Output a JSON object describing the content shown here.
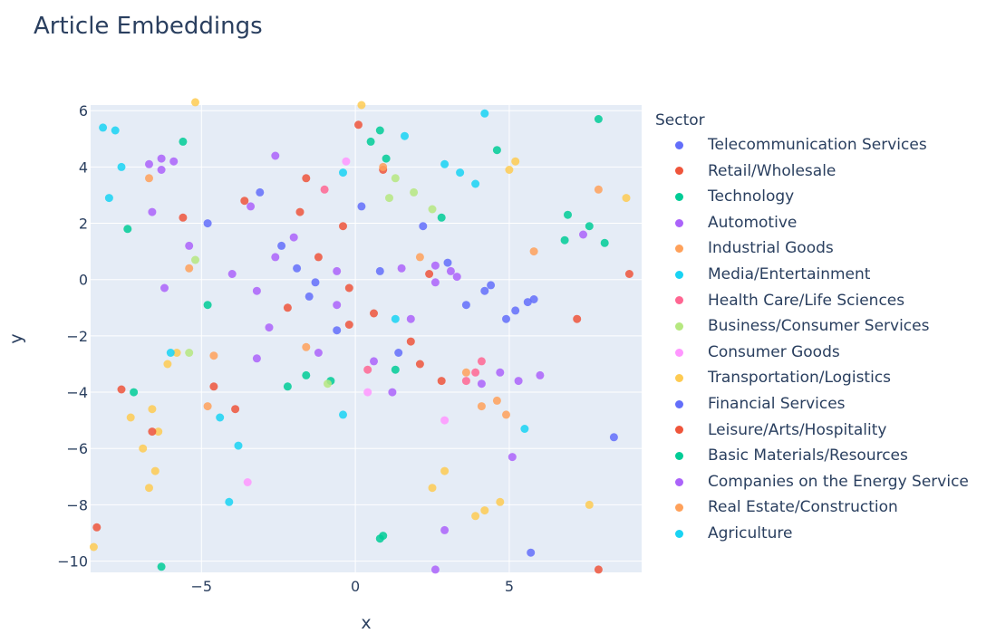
{
  "chart_data": {
    "type": "scatter",
    "title": "Article Embeddings",
    "xlabel": "x",
    "ylabel": "y",
    "xlim": [
      -8.6,
      9.3
    ],
    "ylim": [
      -10.4,
      6.2
    ],
    "xticks": [
      -5,
      0,
      5
    ],
    "yticks": [
      -10,
      -8,
      -6,
      -4,
      -2,
      0,
      2,
      4,
      6
    ],
    "grid": true,
    "plot_background": "#e5ecf6",
    "legend_title": "Sector",
    "legend_position": "right",
    "series": [
      {
        "name": "Telecommunication Services",
        "color": "#636efa",
        "points": [
          [
            -2.4,
            1.2
          ],
          [
            -1.5,
            -0.6
          ],
          [
            0.8,
            0.3
          ],
          [
            3.6,
            -0.9
          ],
          [
            5.2,
            -1.1
          ],
          [
            -4.8,
            2.0
          ],
          [
            2.2,
            1.9
          ],
          [
            -0.6,
            -1.8
          ],
          [
            4.4,
            -0.2
          ],
          [
            -3.1,
            3.1
          ],
          [
            1.4,
            -2.6
          ],
          [
            5.8,
            -0.7
          ],
          [
            -1.9,
            0.4
          ],
          [
            0.2,
            2.6
          ],
          [
            3.0,
            0.6
          ]
        ]
      },
      {
        "name": "Retail/Wholesale",
        "color": "#ef553b",
        "points": [
          [
            -1.2,
            0.8
          ],
          [
            -0.4,
            1.9
          ],
          [
            0.6,
            -1.2
          ],
          [
            1.8,
            -2.2
          ],
          [
            -2.2,
            -1.0
          ],
          [
            2.4,
            0.2
          ],
          [
            -1.6,
            3.6
          ],
          [
            -3.6,
            2.8
          ],
          [
            0.9,
            3.9
          ],
          [
            -5.6,
            2.2
          ],
          [
            -8.4,
            -8.8
          ],
          [
            7.2,
            -1.4
          ],
          [
            -0.2,
            -0.3
          ],
          [
            2.8,
            -3.6
          ],
          [
            -4.6,
            -3.8
          ]
        ]
      },
      {
        "name": "Technology",
        "color": "#00cc96",
        "points": [
          [
            0.5,
            4.9
          ],
          [
            0.8,
            5.3
          ],
          [
            7.6,
            1.9
          ],
          [
            6.9,
            2.3
          ],
          [
            8.1,
            1.3
          ],
          [
            -0.8,
            -3.6
          ],
          [
            -1.6,
            -3.4
          ],
          [
            2.8,
            2.2
          ],
          [
            -7.2,
            -4.0
          ],
          [
            0.8,
            -9.2
          ],
          [
            -6.3,
            -10.2
          ],
          [
            6.8,
            1.4
          ],
          [
            1.0,
            4.3
          ],
          [
            -2.2,
            -3.8
          ]
        ]
      },
      {
        "name": "Automotive",
        "color": "#ab63fa",
        "points": [
          [
            -6.3,
            4.3
          ],
          [
            -2.6,
            0.8
          ],
          [
            -3.2,
            -0.4
          ],
          [
            -2.0,
            1.5
          ],
          [
            4.1,
            -3.7
          ],
          [
            4.7,
            -3.3
          ],
          [
            5.3,
            -3.6
          ],
          [
            6.0,
            -3.4
          ],
          [
            2.6,
            -0.1
          ],
          [
            1.8,
            -1.4
          ],
          [
            -0.6,
            -0.9
          ],
          [
            -3.4,
            2.6
          ],
          [
            -2.8,
            -1.7
          ],
          [
            0.6,
            -2.9
          ],
          [
            3.1,
            0.3
          ],
          [
            -5.4,
            1.2
          ],
          [
            -1.2,
            -2.6
          ],
          [
            -4.0,
            0.2
          ],
          [
            1.2,
            -4.0
          ],
          [
            -2.6,
            4.4
          ]
        ]
      },
      {
        "name": "Industrial Goods",
        "color": "#ffa15a",
        "points": [
          [
            -5.4,
            0.4
          ],
          [
            3.6,
            -3.3
          ],
          [
            4.1,
            -4.5
          ],
          [
            7.9,
            3.2
          ],
          [
            -6.7,
            3.6
          ],
          [
            5.8,
            1.0
          ],
          [
            -4.8,
            -4.5
          ],
          [
            2.1,
            0.8
          ]
        ]
      },
      {
        "name": "Media/Entertainment",
        "color": "#19d3f3",
        "points": [
          [
            -8.2,
            5.4
          ],
          [
            -7.8,
            5.3
          ],
          [
            -7.6,
            4.0
          ],
          [
            2.9,
            4.1
          ],
          [
            3.4,
            3.8
          ],
          [
            -0.4,
            3.8
          ],
          [
            -8.0,
            2.9
          ],
          [
            1.6,
            5.1
          ],
          [
            -4.1,
            -7.9
          ],
          [
            -3.8,
            -5.9
          ]
        ]
      },
      {
        "name": "Health Care/Life Sciences",
        "color": "#ff6692",
        "points": [
          [
            3.9,
            -3.3
          ],
          [
            4.1,
            -2.9
          ],
          [
            3.6,
            -3.6
          ],
          [
            -1.0,
            3.2
          ],
          [
            0.4,
            -3.2
          ]
        ]
      },
      {
        "name": "Business/Consumer Services",
        "color": "#b6e880",
        "points": [
          [
            1.3,
            3.6
          ],
          [
            1.9,
            3.1
          ],
          [
            2.5,
            2.5
          ],
          [
            1.1,
            2.9
          ],
          [
            -5.2,
            0.7
          ],
          [
            -5.4,
            -2.6
          ],
          [
            -0.9,
            -3.7
          ]
        ]
      },
      {
        "name": "Consumer Goods",
        "color": "#ff97ff",
        "points": [
          [
            -0.3,
            4.2
          ],
          [
            0.4,
            -4.0
          ],
          [
            2.9,
            -5.0
          ],
          [
            -3.5,
            -7.2
          ]
        ]
      },
      {
        "name": "Transportation/Logistics",
        "color": "#fecb52",
        "points": [
          [
            -6.6,
            -4.6
          ],
          [
            -6.4,
            -5.4
          ],
          [
            -6.9,
            -6.0
          ],
          [
            -6.5,
            -6.8
          ],
          [
            -6.7,
            -7.4
          ],
          [
            -7.3,
            -4.9
          ],
          [
            -5.8,
            -2.6
          ],
          [
            -6.1,
            -3.0
          ],
          [
            5.2,
            4.2
          ],
          [
            5.0,
            3.9
          ],
          [
            4.2,
            -8.2
          ],
          [
            4.7,
            -7.9
          ],
          [
            3.9,
            -8.4
          ],
          [
            7.6,
            -8.0
          ],
          [
            2.9,
            -6.8
          ],
          [
            2.5,
            -7.4
          ],
          [
            -5.2,
            6.3
          ],
          [
            -8.5,
            -9.5
          ],
          [
            8.8,
            2.9
          ],
          [
            0.2,
            6.2
          ]
        ]
      },
      {
        "name": "Financial Services",
        "color": "#636efa",
        "points": [
          [
            4.9,
            -1.4
          ],
          [
            5.6,
            -0.8
          ],
          [
            4.2,
            -0.4
          ],
          [
            -1.3,
            -0.1
          ],
          [
            8.4,
            -5.6
          ],
          [
            5.7,
            -9.7
          ]
        ]
      },
      {
        "name": "Leisure/Arts/Hospitality",
        "color": "#ef553b",
        "points": [
          [
            -0.2,
            -1.6
          ],
          [
            2.1,
            -3.0
          ],
          [
            -1.8,
            2.4
          ],
          [
            -6.6,
            -5.4
          ],
          [
            -7.6,
            -3.9
          ],
          [
            -3.9,
            -4.6
          ],
          [
            7.9,
            -10.3
          ],
          [
            8.9,
            0.2
          ],
          [
            0.1,
            5.5
          ]
        ]
      },
      {
        "name": "Basic Materials/Resources",
        "color": "#00cc96",
        "points": [
          [
            -7.4,
            1.8
          ],
          [
            -5.6,
            4.9
          ],
          [
            -4.8,
            -0.9
          ],
          [
            0.9,
            -9.1
          ],
          [
            1.3,
            -3.2
          ],
          [
            7.9,
            5.7
          ],
          [
            4.6,
            4.6
          ]
        ]
      },
      {
        "name": "Companies on the Energy Service",
        "color": "#ab63fa",
        "points": [
          [
            -6.7,
            4.1
          ],
          [
            -5.9,
            4.2
          ],
          [
            -6.3,
            3.9
          ],
          [
            1.5,
            0.4
          ],
          [
            2.6,
            0.5
          ],
          [
            3.3,
            0.1
          ],
          [
            -0.6,
            0.3
          ],
          [
            -3.2,
            -2.8
          ],
          [
            7.4,
            1.6
          ],
          [
            -6.6,
            2.4
          ],
          [
            2.6,
            -10.3
          ],
          [
            -6.2,
            -0.3
          ],
          [
            5.1,
            -6.3
          ],
          [
            2.9,
            -8.9
          ]
        ]
      },
      {
        "name": "Real Estate/Construction",
        "color": "#ffa15a",
        "points": [
          [
            4.9,
            -4.8
          ],
          [
            4.6,
            -4.3
          ],
          [
            -1.6,
            -2.4
          ],
          [
            -4.6,
            -2.7
          ],
          [
            0.9,
            4.0
          ]
        ]
      },
      {
        "name": "Agriculture",
        "color": "#19d3f3",
        "points": [
          [
            -6.0,
            -2.6
          ],
          [
            -4.4,
            -4.9
          ],
          [
            3.9,
            3.4
          ],
          [
            1.3,
            -1.4
          ],
          [
            -0.4,
            -4.8
          ],
          [
            5.5,
            -5.3
          ],
          [
            4.2,
            5.9
          ]
        ]
      }
    ]
  }
}
